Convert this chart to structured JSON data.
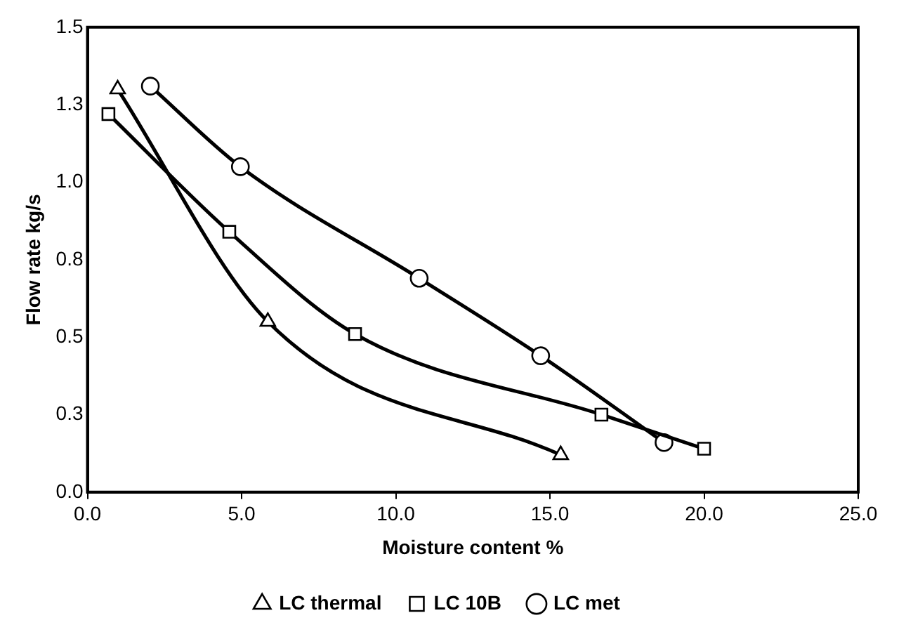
{
  "chart_data": {
    "type": "line",
    "xlabel": "Moisture content %",
    "ylabel": "Flow rate kg/s",
    "xlim": [
      0,
      25
    ],
    "xticks": [
      {
        "value": 0,
        "label": "0.0"
      },
      {
        "value": 5,
        "label": "5.0"
      },
      {
        "value": 10,
        "label": "10.0"
      },
      {
        "value": 15,
        "label": "15.0"
      },
      {
        "value": 20,
        "label": "20.0"
      },
      {
        "value": 25,
        "label": "25.0"
      }
    ],
    "ylim": [
      0,
      1.5
    ],
    "yticks": [
      {
        "value": 0,
        "label": "0.0"
      },
      {
        "value": 0.25,
        "label": "0.3"
      },
      {
        "value": 0.5,
        "label": "0.5"
      },
      {
        "value": 0.75,
        "label": "0.8"
      },
      {
        "value": 1,
        "label": "1.0"
      },
      {
        "value": 1.25,
        "label": "1.3"
      },
      {
        "value": 1.5,
        "label": "1.5"
      }
    ],
    "grid": false,
    "legend": "bottom",
    "line_style": "solid",
    "series": [
      {
        "name": "LC thermal",
        "color": "#000000",
        "marker": "triangle",
        "x": [
          0.98,
          5.85,
          15.35
        ],
        "values": [
          1.3,
          0.55,
          0.12
        ]
      },
      {
        "name": "LC 10B",
        "color": "#000000",
        "marker": "square",
        "x": [
          0.68,
          4.6,
          8.68,
          16.67,
          20.0
        ],
        "values": [
          1.22,
          0.84,
          0.51,
          0.25,
          0.14
        ]
      },
      {
        "name": "LC met",
        "color": "#000000",
        "marker": "circle",
        "x": [
          2.04,
          4.96,
          10.76,
          14.7,
          18.7
        ],
        "values": [
          1.31,
          1.05,
          0.69,
          0.44,
          0.16
        ]
      }
    ]
  }
}
